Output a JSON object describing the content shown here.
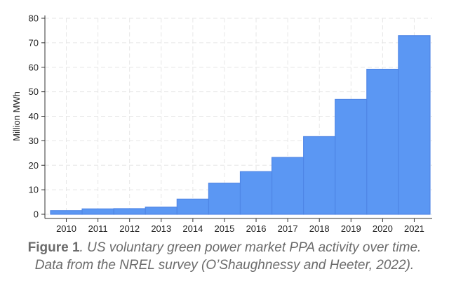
{
  "chart_data": {
    "type": "bar",
    "ylabel": "Million MWh",
    "xlabel": "",
    "ylim": [
      0,
      80
    ],
    "yticks": [
      0,
      10,
      20,
      30,
      40,
      50,
      60,
      70,
      80
    ],
    "grid": true,
    "categories": [
      "2010",
      "2011",
      "2012",
      "2013",
      "2014",
      "2015",
      "2016",
      "2017",
      "2018",
      "2019",
      "2020",
      "2021"
    ],
    "values": [
      1.5,
      2.2,
      2.3,
      2.9,
      6.2,
      12.7,
      17.4,
      23.2,
      31.7,
      46.9,
      59.2,
      72.9
    ],
    "bar_color": "#5b97f3",
    "bar_edge_color": "#4f86e6",
    "grid_color": "#e6e6e6"
  },
  "caption": {
    "lead": "Figure 1",
    "line1_rest": ". US voluntary green power market PPA activity over time.",
    "line2": "Data from the NREL survey (O’Shaughnessy and Heeter, 2022)."
  }
}
